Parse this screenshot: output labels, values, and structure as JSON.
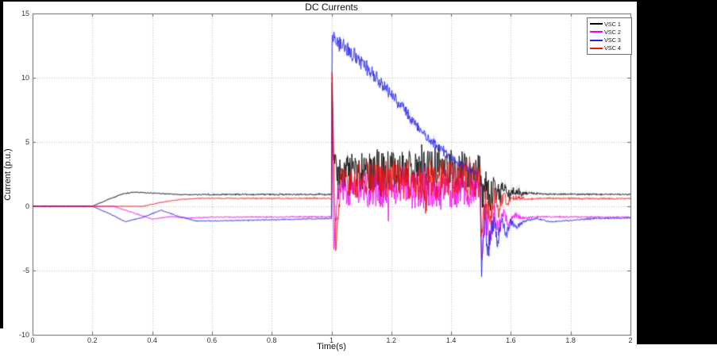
{
  "page": {
    "background": "#ffffff",
    "frame_color": "#000000"
  },
  "chart_data": {
    "type": "line",
    "title": "DC Currents",
    "xlabel": "Time(s)",
    "ylabel": "Current (p.u.)",
    "xlim": [
      0,
      2
    ],
    "ylim": [
      -10,
      15
    ],
    "xticks": [
      0,
      0.2,
      0.4,
      0.6,
      0.8,
      1,
      1.2,
      1.4,
      1.6,
      1.8,
      2
    ],
    "xtick_labels": [
      "0",
      "0.2",
      "0.4",
      "0.6",
      "0.8",
      "1",
      "1.2",
      "1.4",
      "1.6",
      "1.8",
      "2"
    ],
    "yticks": [
      -10,
      -5,
      0,
      5,
      10,
      15
    ],
    "ytick_labels": [
      "-10",
      "-5",
      "0",
      "5",
      "10",
      "15"
    ],
    "grid": true,
    "grid_style": "dotted",
    "grid_color": "#b8b8b8",
    "axis_color": "#666666",
    "legend": {
      "position": "top-right",
      "entries": [
        {
          "label": "VSC 1",
          "color": "#000000"
        },
        {
          "label": "VSC 2",
          "color": "#ee00ee"
        },
        {
          "label": "VSC 3",
          "color": "#2222e8"
        },
        {
          "label": "VSC 4",
          "color": "#ee1111"
        }
      ]
    },
    "series": [
      {
        "name": "VSC 1",
        "color": "#000000",
        "keypoints": [
          [
            0,
            0,
            0.03
          ],
          [
            0.2,
            0,
            0.03
          ],
          [
            0.25,
            0.5,
            0.03
          ],
          [
            0.3,
            0.95,
            0.03
          ],
          [
            0.34,
            1.1,
            0.03
          ],
          [
            0.42,
            1.0,
            0.03
          ],
          [
            0.5,
            0.9,
            0.04
          ],
          [
            0.7,
            0.92,
            0.05
          ],
          [
            1.0,
            0.92,
            0.05
          ],
          [
            1.002,
            9.6,
            0.1
          ],
          [
            1.006,
            4.0,
            0.5
          ],
          [
            1.02,
            2.6,
            1.3
          ],
          [
            1.1,
            2.7,
            1.5
          ],
          [
            1.2,
            2.8,
            1.5
          ],
          [
            1.3,
            2.8,
            1.5
          ],
          [
            1.4,
            2.9,
            1.5
          ],
          [
            1.497,
            2.8,
            1.4
          ],
          [
            1.503,
            0.3,
            1.2
          ],
          [
            1.515,
            1.9,
            1.4
          ],
          [
            1.53,
            0.4,
            1.2
          ],
          [
            1.545,
            1.7,
            1.0
          ],
          [
            1.56,
            0.6,
            0.8
          ],
          [
            1.575,
            1.5,
            0.6
          ],
          [
            1.59,
            0.8,
            0.45
          ],
          [
            1.61,
            1.2,
            0.3
          ],
          [
            1.635,
            0.95,
            0.18
          ],
          [
            1.66,
            1.05,
            0.1
          ],
          [
            1.7,
            0.95,
            0.06
          ],
          [
            2.0,
            0.92,
            0.05
          ]
        ]
      },
      {
        "name": "VSC 2",
        "color": "#ee00ee",
        "keypoints": [
          [
            0,
            0,
            0.02
          ],
          [
            0.27,
            0,
            0.02
          ],
          [
            0.33,
            -0.45,
            0.03
          ],
          [
            0.4,
            -1.0,
            0.03
          ],
          [
            0.46,
            -0.8,
            0.03
          ],
          [
            0.52,
            -0.92,
            0.03
          ],
          [
            0.6,
            -0.85,
            0.04
          ],
          [
            1.0,
            -0.82,
            0.05
          ],
          [
            1.002,
            7.2,
            0.2
          ],
          [
            1.008,
            -3.6,
            0.3
          ],
          [
            1.02,
            1.2,
            1.0
          ],
          [
            1.1,
            1.2,
            1.4
          ],
          [
            1.2,
            1.3,
            1.4
          ],
          [
            1.3,
            1.2,
            1.4
          ],
          [
            1.4,
            1.3,
            1.4
          ],
          [
            1.497,
            1.2,
            1.3
          ],
          [
            1.503,
            -4.4,
            0.5
          ],
          [
            1.515,
            -0.6,
            1.3
          ],
          [
            1.53,
            -2.4,
            1.0
          ],
          [
            1.545,
            -0.5,
            0.9
          ],
          [
            1.56,
            -1.7,
            0.7
          ],
          [
            1.575,
            -0.5,
            0.5
          ],
          [
            1.59,
            -1.3,
            0.35
          ],
          [
            1.615,
            -0.7,
            0.2
          ],
          [
            1.645,
            -0.95,
            0.1
          ],
          [
            1.68,
            -0.82,
            0.06
          ],
          [
            2.0,
            -0.85,
            0.05
          ]
        ]
      },
      {
        "name": "VSC 3",
        "color": "#2222e8",
        "keypoints": [
          [
            0,
            0,
            0.02
          ],
          [
            0.2,
            0,
            0.02
          ],
          [
            0.26,
            -0.6,
            0.03
          ],
          [
            0.31,
            -1.2,
            0.03
          ],
          [
            0.37,
            -0.85,
            0.03
          ],
          [
            0.43,
            -0.3,
            0.03
          ],
          [
            0.49,
            -0.8,
            0.03
          ],
          [
            0.55,
            -1.15,
            0.03
          ],
          [
            0.7,
            -1.1,
            0.04
          ],
          [
            0.9,
            -1.0,
            0.04
          ],
          [
            1.0,
            -0.95,
            0.04
          ],
          [
            1.002,
            13.4,
            0.3
          ],
          [
            1.01,
            13.0,
            0.7
          ],
          [
            1.05,
            12.3,
            0.65
          ],
          [
            1.1,
            11.2,
            0.6
          ],
          [
            1.15,
            10.0,
            0.55
          ],
          [
            1.2,
            8.7,
            0.5
          ],
          [
            1.25,
            7.3,
            0.45
          ],
          [
            1.3,
            5.9,
            0.4
          ],
          [
            1.35,
            4.7,
            0.35
          ],
          [
            1.4,
            3.7,
            0.3
          ],
          [
            1.45,
            3.0,
            0.25
          ],
          [
            1.497,
            2.4,
            0.2
          ],
          [
            1.502,
            -5.2,
            0.4
          ],
          [
            1.512,
            -1.2,
            1.3
          ],
          [
            1.525,
            -3.6,
            1.0
          ],
          [
            1.54,
            -1.0,
            0.9
          ],
          [
            1.555,
            -2.9,
            0.7
          ],
          [
            1.57,
            -1.1,
            0.5
          ],
          [
            1.585,
            -2.2,
            0.4
          ],
          [
            1.6,
            -1.2,
            0.3
          ],
          [
            1.62,
            -1.6,
            0.2
          ],
          [
            1.65,
            -1.1,
            0.1
          ],
          [
            1.69,
            -0.95,
            0.06
          ],
          [
            1.73,
            -1.2,
            0.05
          ],
          [
            1.8,
            -1.1,
            0.05
          ],
          [
            1.88,
            -0.95,
            0.05
          ],
          [
            2.0,
            -0.92,
            0.05
          ]
        ]
      },
      {
        "name": "VSC 4",
        "color": "#ee1111",
        "keypoints": [
          [
            0,
            0,
            0.02
          ],
          [
            0.37,
            0,
            0.02
          ],
          [
            0.43,
            0.3,
            0.03
          ],
          [
            0.5,
            0.55,
            0.03
          ],
          [
            0.56,
            0.62,
            0.03
          ],
          [
            0.7,
            0.62,
            0.04
          ],
          [
            1.0,
            0.62,
            0.05
          ],
          [
            1.002,
            10.4,
            0.3
          ],
          [
            1.008,
            3.0,
            0.5
          ],
          [
            1.014,
            -3.4,
            0.3
          ],
          [
            1.03,
            2.0,
            1.2
          ],
          [
            1.1,
            2.0,
            1.5
          ],
          [
            1.2,
            2.1,
            1.5
          ],
          [
            1.3,
            2.0,
            1.5
          ],
          [
            1.4,
            2.1,
            1.5
          ],
          [
            1.497,
            2.0,
            1.4
          ],
          [
            1.503,
            -2.6,
            0.9
          ],
          [
            1.515,
            0.9,
            1.2
          ],
          [
            1.53,
            -1.1,
            1.0
          ],
          [
            1.545,
            0.8,
            0.8
          ],
          [
            1.56,
            -0.4,
            0.6
          ],
          [
            1.575,
            0.8,
            0.45
          ],
          [
            1.59,
            0.3,
            0.3
          ],
          [
            1.615,
            0.7,
            0.18
          ],
          [
            1.65,
            0.6,
            0.1
          ],
          [
            1.7,
            0.62,
            0.06
          ],
          [
            2.0,
            0.6,
            0.05
          ]
        ]
      }
    ]
  }
}
